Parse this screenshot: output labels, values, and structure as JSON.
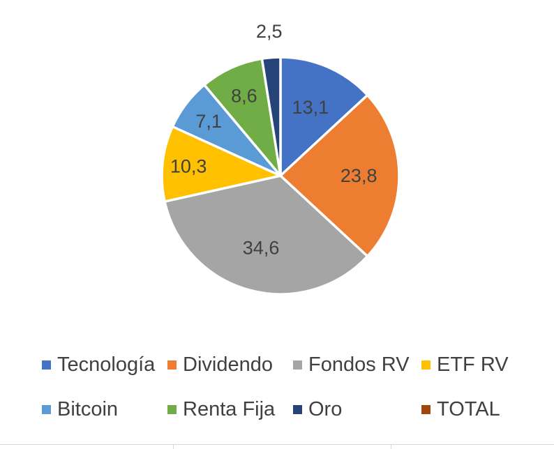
{
  "chart_data": {
    "type": "pie",
    "slices": [
      {
        "label": "Tecnología",
        "value": 13.1,
        "display": "13,1",
        "color": "#4472C4"
      },
      {
        "label": "Dividendo",
        "value": 23.8,
        "display": "23,8",
        "color": "#ED7D31"
      },
      {
        "label": "Fondos RV",
        "value": 34.6,
        "display": "34,6",
        "color": "#A5A5A5"
      },
      {
        "label": "ETF RV",
        "value": 10.3,
        "display": "10,3",
        "color": "#FFC000"
      },
      {
        "label": "Bitcoin",
        "value": 7.1,
        "display": "7,1",
        "color": "#5B9BD5"
      },
      {
        "label": "Renta Fija",
        "value": 8.6,
        "display": "8,6",
        "color": "#70AD47"
      },
      {
        "label": "Oro",
        "value": 2.5,
        "display": "2,5",
        "color": "#264478"
      }
    ],
    "legend": {
      "placement": "bottom",
      "entries": [
        {
          "label": "Tecnología",
          "color": "#4472C4"
        },
        {
          "label": "Dividendo",
          "color": "#ED7D31"
        },
        {
          "label": "Fondos RV",
          "color": "#A5A5A5"
        },
        {
          "label": "ETF RV",
          "color": "#FFC000"
        },
        {
          "label": "Bitcoin",
          "color": "#5B9BD5"
        },
        {
          "label": "Renta Fija",
          "color": "#70AD47"
        },
        {
          "label": "Oro",
          "color": "#264478"
        },
        {
          "label": "TOTAL",
          "color": "#9E480E"
        }
      ]
    },
    "title": ""
  }
}
